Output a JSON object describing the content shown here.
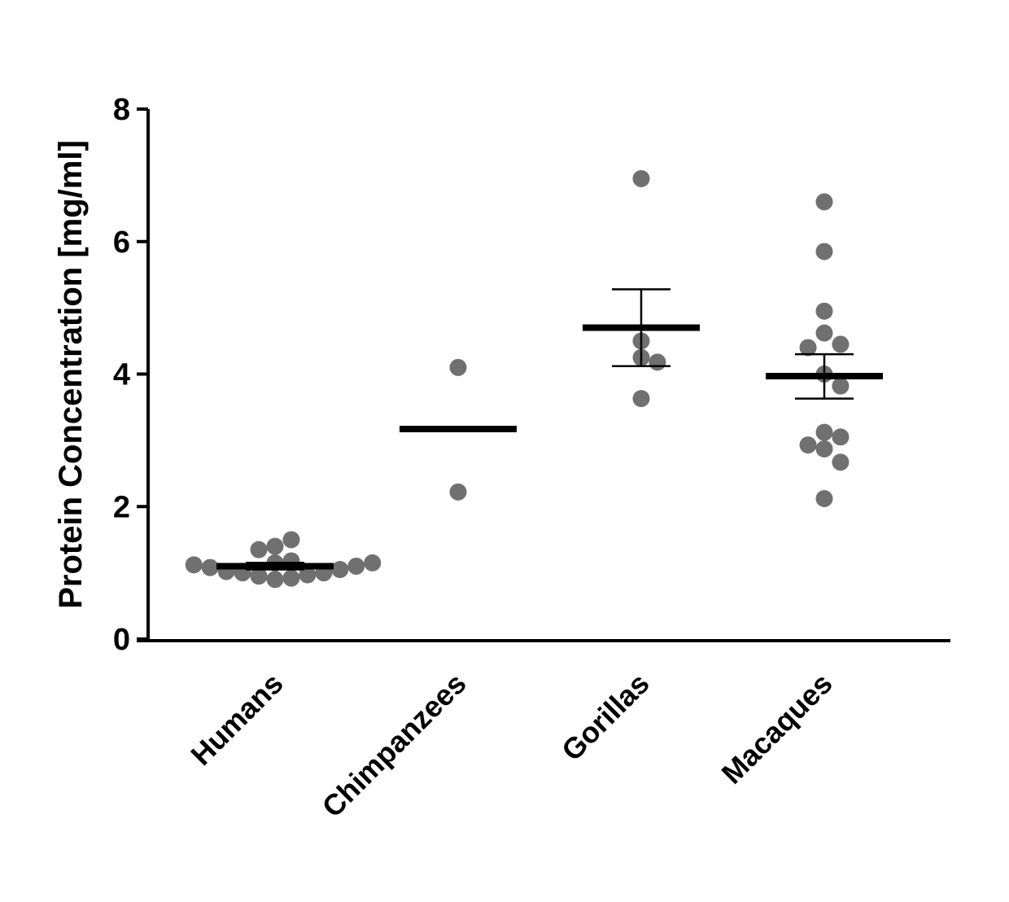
{
  "chart_data": {
    "type": "scatter",
    "ylabel": "Protein Concentration [mg/ml]",
    "xlabel": "",
    "ylim": [
      0,
      8
    ],
    "yticks": [
      0,
      2,
      4,
      6,
      8
    ],
    "grid": false,
    "categories": [
      "Humans",
      "Chimpanzees",
      "Gorillas",
      "Macaques"
    ],
    "groups": [
      {
        "category": "Humans",
        "points": [
          0.9,
          0.92,
          0.95,
          0.97,
          1.0,
          1.0,
          1.02,
          1.05,
          1.08,
          1.1,
          1.12,
          1.15,
          1.15,
          1.18,
          1.35,
          1.4,
          1.5
        ],
        "mean": 1.1,
        "sem_low": 1.05,
        "sem_high": 1.15
      },
      {
        "category": "Chimpanzees",
        "points": [
          4.1,
          2.22
        ],
        "mean": 3.17,
        "sem_low": null,
        "sem_high": null
      },
      {
        "category": "Gorillas",
        "points": [
          6.95,
          4.5,
          4.25,
          4.18,
          3.63
        ],
        "mean": 4.7,
        "sem_low": 4.12,
        "sem_high": 5.28
      },
      {
        "category": "Macaques",
        "points": [
          6.6,
          5.85,
          4.95,
          4.62,
          4.45,
          4.4,
          4.0,
          3.82,
          3.12,
          3.05,
          2.93,
          2.87,
          2.67,
          2.12
        ],
        "mean": 3.97,
        "sem_low": 3.63,
        "sem_high": 4.3
      }
    ],
    "point_color": "#707070",
    "line_color": "#000000"
  }
}
